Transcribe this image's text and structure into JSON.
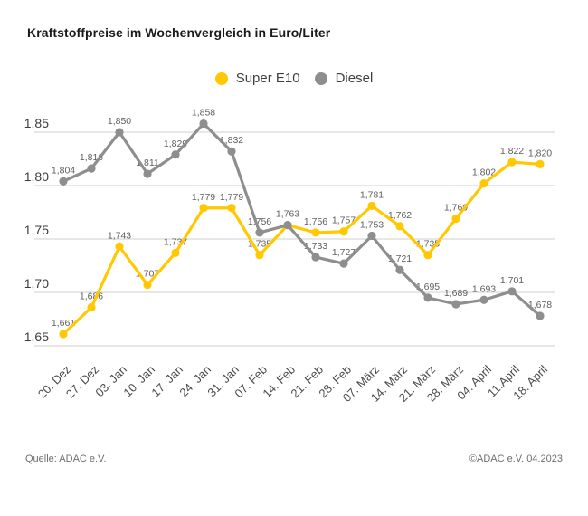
{
  "title": "Kraftstoffpreise im Wochenvergleich in Euro/Liter",
  "legend": {
    "items": [
      {
        "label": "Super E10",
        "color": "#FFC800"
      },
      {
        "label": "Diesel",
        "color": "#8E8E8E"
      }
    ]
  },
  "footer": {
    "source": "Quelle: ADAC e.V.",
    "copyright": "©ADAC e.V. 04.2023"
  },
  "colors": {
    "gridline": "#CFCFCF",
    "data_label": "#5E5E5E",
    "y_tick": "#3D3D3D",
    "x_tick": "#4A4A4A",
    "title": "#1A1A1A",
    "footer": "#6E6E6E",
    "super_e10": "#FFC800",
    "diesel": "#8E8E8E"
  },
  "chart_data": {
    "type": "line",
    "title": "Kraftstoffpreise im Wochenvergleich in Euro/Liter",
    "xlabel": "",
    "ylabel": "Euro/Liter",
    "grid": "horizontal",
    "legend_position": "top-center",
    "ylim": [
      1.63,
      1.88
    ],
    "categories": [
      "20. Dez",
      "27. Dez",
      "03. Jan",
      "10. Jan",
      "17. Jan",
      "24. Jan",
      "31. Jan",
      "07. Feb",
      "14. Feb",
      "21. Feb",
      "28. Feb",
      "07. März",
      "14. März",
      "21. März",
      "28. März",
      "04. April",
      "11.April",
      "18. April"
    ],
    "y_ticks": {
      "values": [
        1.85,
        1.8,
        1.75,
        1.7,
        1.65
      ],
      "labels": [
        "1,85",
        "1,80",
        "1,75",
        "1,70",
        "1,65"
      ]
    },
    "series": [
      {
        "name": "Super E10",
        "color": "#FFC800",
        "values": [
          1.661,
          1.686,
          1.743,
          1.707,
          1.737,
          1.779,
          1.779,
          1.735,
          1.763,
          1.756,
          1.757,
          1.781,
          1.762,
          1.735,
          1.769,
          1.802,
          1.822,
          1.82
        ],
        "labels": [
          "1,661",
          "1,686",
          "1,743",
          "1,707",
          "1,737",
          "1,779",
          "1,779",
          "1,735",
          "",
          "1,756",
          "1,757",
          "1,781",
          "1,762",
          "1,735",
          "1,769",
          "1,802",
          "1,822",
          "1,820"
        ]
      },
      {
        "name": "Diesel",
        "color": "#8E8E8E",
        "values": [
          1.804,
          1.816,
          1.85,
          1.811,
          1.829,
          1.858,
          1.832,
          1.756,
          1.763,
          1.733,
          1.727,
          1.753,
          1.721,
          1.695,
          1.689,
          1.693,
          1.701,
          1.678
        ],
        "labels": [
          "1,804",
          "1,816",
          "1,850",
          "1,811",
          "1,829",
          "1,858",
          "1,832",
          "1,756",
          "1,763",
          "1,733",
          "1,727",
          "1,753",
          "1,721",
          "1,695",
          "1,689",
          "1,693",
          "1,701",
          "1,678"
        ]
      }
    ]
  }
}
